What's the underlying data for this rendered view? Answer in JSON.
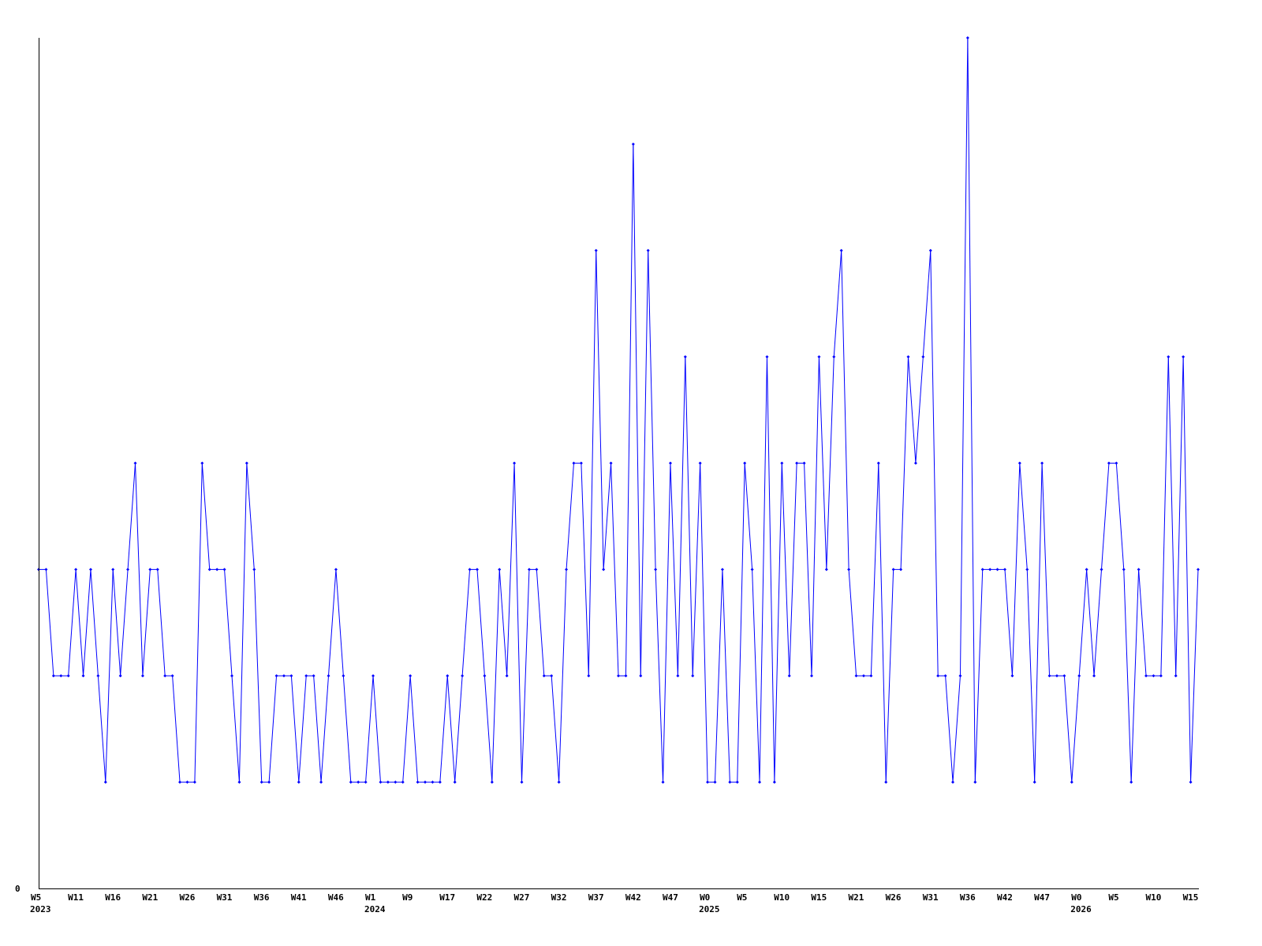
{
  "chart_data": {
    "type": "line",
    "title": "",
    "xlabel": "",
    "ylabel": "",
    "ylim": [
      0,
      8
    ],
    "y_ticks": [
      "0"
    ],
    "grid": false,
    "line_color": "#0000ff",
    "axis_color": "#000000",
    "x_tick_labels": [
      {
        "index": 0,
        "week": "W5",
        "year": "2023"
      },
      {
        "index": 5,
        "week": "W11"
      },
      {
        "index": 10,
        "week": "W16"
      },
      {
        "index": 15,
        "week": "W21"
      },
      {
        "index": 20,
        "week": "W26"
      },
      {
        "index": 25,
        "week": "W31"
      },
      {
        "index": 30,
        "week": "W36"
      },
      {
        "index": 35,
        "week": "W41"
      },
      {
        "index": 40,
        "week": "W46"
      },
      {
        "index": 45,
        "week": "W1",
        "year": "2024"
      },
      {
        "index": 50,
        "week": "W9"
      },
      {
        "index": 55,
        "week": "W17"
      },
      {
        "index": 60,
        "week": "W22"
      },
      {
        "index": 65,
        "week": "W27"
      },
      {
        "index": 70,
        "week": "W32"
      },
      {
        "index": 75,
        "week": "W37"
      },
      {
        "index": 80,
        "week": "W42"
      },
      {
        "index": 85,
        "week": "W47"
      },
      {
        "index": 90,
        "week": "W0",
        "year": "2025"
      },
      {
        "index": 95,
        "week": "W5"
      },
      {
        "index": 100,
        "week": "W10"
      },
      {
        "index": 105,
        "week": "W15"
      },
      {
        "index": 110,
        "week": "W21"
      },
      {
        "index": 115,
        "week": "W26"
      },
      {
        "index": 120,
        "week": "W31"
      },
      {
        "index": 125,
        "week": "W36"
      },
      {
        "index": 130,
        "week": "W42"
      },
      {
        "index": 135,
        "week": "W47"
      },
      {
        "index": 140,
        "week": "W0",
        "year": "2026"
      },
      {
        "index": 145,
        "week": "W5"
      },
      {
        "index": 150,
        "week": "W10"
      },
      {
        "index": 155,
        "week": "W15"
      }
    ],
    "values": [
      3,
      3,
      2,
      2,
      2,
      3,
      2,
      3,
      2,
      1,
      3,
      2,
      3,
      4,
      2,
      3,
      3,
      2,
      2,
      1,
      1,
      1,
      4,
      3,
      3,
      3,
      2,
      1,
      4,
      3,
      1,
      1,
      2,
      2,
      2,
      1,
      2,
      2,
      1,
      2,
      3,
      2,
      1,
      1,
      1,
      2,
      1,
      1,
      1,
      1,
      2,
      1,
      1,
      1,
      1,
      2,
      1,
      2,
      3,
      3,
      2,
      1,
      3,
      2,
      4,
      1,
      3,
      3,
      2,
      2,
      1,
      3,
      4,
      4,
      2,
      6,
      3,
      4,
      2,
      2,
      7,
      2,
      6,
      3,
      1,
      4,
      2,
      5,
      2,
      4,
      1,
      1,
      3,
      1,
      1,
      4,
      3,
      1,
      5,
      1,
      4,
      2,
      4,
      4,
      2,
      5,
      3,
      5,
      6,
      3,
      2,
      2,
      2,
      4,
      1,
      3,
      3,
      5,
      4,
      5,
      6,
      2,
      2,
      1,
      2,
      8,
      1,
      3,
      3,
      3,
      3,
      2,
      4,
      3,
      1,
      4,
      2,
      2,
      2,
      1,
      2,
      3,
      2,
      3,
      4,
      4,
      3,
      1,
      3,
      2,
      2,
      2,
      5,
      2,
      5,
      1,
      3
    ]
  }
}
